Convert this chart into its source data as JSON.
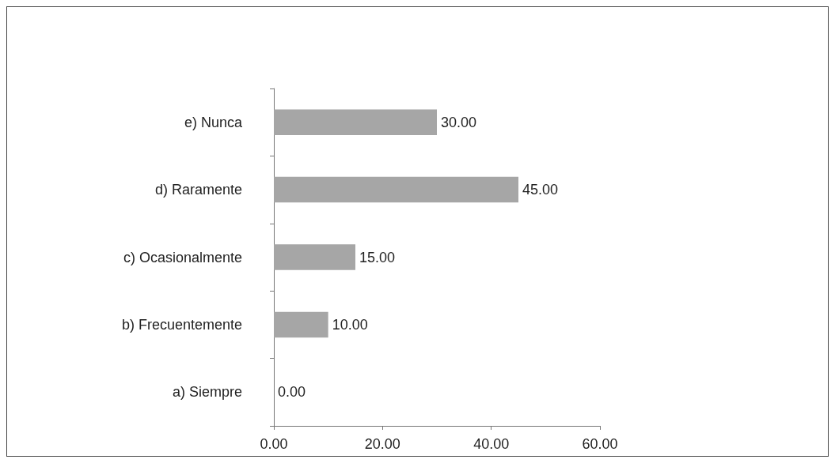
{
  "chart_data": {
    "type": "bar",
    "orientation": "horizontal",
    "categories": [
      "e) Nunca",
      "d) Raramente",
      "c) Ocasionalmente",
      "b) Frecuentemente",
      "a) Siempre"
    ],
    "values": [
      30,
      45,
      15,
      10,
      0
    ],
    "value_labels": [
      "30.00",
      "45.00",
      "15.00",
      "10.00",
      "0.00"
    ],
    "color": "#a6a6a6",
    "xlim": [
      0,
      60
    ],
    "xticks": [
      {
        "value": 0,
        "label": "0.00"
      },
      {
        "value": 20,
        "label": "20.00"
      },
      {
        "value": 40,
        "label": "40.00"
      },
      {
        "value": 60,
        "label": "60.00"
      }
    ],
    "grid": false
  }
}
